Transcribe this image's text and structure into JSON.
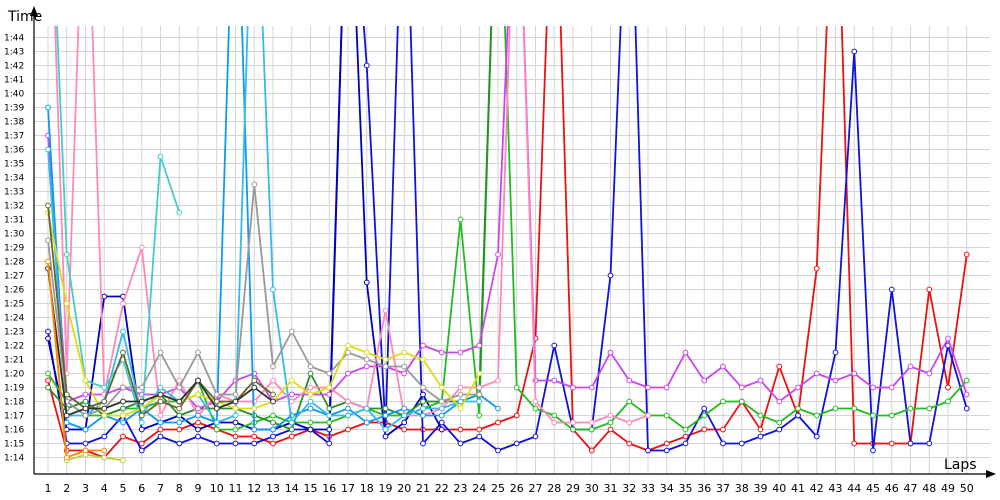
{
  "chart_data": {
    "type": "line",
    "title": "",
    "xlabel": "Laps",
    "ylabel": "Time",
    "x": [
      1,
      2,
      3,
      4,
      5,
      6,
      7,
      8,
      9,
      10,
      11,
      12,
      13,
      14,
      15,
      16,
      17,
      18,
      19,
      20,
      21,
      22,
      23,
      24,
      25,
      26,
      27,
      28,
      29,
      30,
      31,
      32,
      33,
      34,
      35,
      36,
      37,
      38,
      39,
      40,
      41,
      42,
      43,
      44,
      45,
      46,
      47,
      48,
      49,
      50
    ],
    "xlim": [
      1,
      50
    ],
    "ylim": [
      13.2,
      45.5
    ],
    "ytick_labels": [
      "1:14",
      "1:15",
      "1:16",
      "1:17",
      "1:18",
      "1:19",
      "1:20",
      "1:21",
      "1:22",
      "1:23",
      "1:24",
      "1:25",
      "1:26",
      "1:27",
      "1:28",
      "1:29",
      "1:30",
      "1:31",
      "1:32",
      "1:33",
      "1:34",
      "1:35",
      "1:36",
      "1:37",
      "1:38",
      "1:39",
      "1:40",
      "1:41",
      "1:42",
      "1:43",
      "1:44"
    ],
    "grid": true,
    "legend": "none",
    "series": [
      {
        "color": "#ee1111",
        "values": [
          19.5,
          14.5,
          14.5,
          14.0,
          15.5,
          15.0,
          16.0,
          16.0,
          16.5,
          16.0,
          15.5,
          15.5,
          15.0,
          15.5,
          16.0,
          15.5,
          16.0,
          16.5,
          16.5,
          16.0,
          16.0,
          16.0,
          16.0,
          16.0,
          16.5,
          17.0,
          22.5,
          60.0,
          16.0,
          14.5,
          16.0,
          15.0,
          14.5,
          15.0,
          15.5,
          16.0,
          16.0,
          18.0,
          16.0,
          20.5,
          17.0,
          27.5,
          60.0,
          15.0,
          15.0,
          15.0,
          15.0,
          26.0,
          19.0,
          28.5
        ]
      },
      {
        "color": "#1111dd",
        "values": [
          23.0,
          15.0,
          15.0,
          15.5,
          17.0,
          14.5,
          15.5,
          15.0,
          15.5,
          15.0,
          15.0,
          15.0,
          15.5,
          16.0,
          16.0,
          15.0,
          60.0,
          42.0,
          16.0,
          60.0,
          15.0,
          16.5,
          15.0,
          15.5,
          14.5,
          15.0,
          15.5,
          22.0,
          16.0,
          16.0,
          27.0,
          60.0,
          14.5,
          14.5,
          15.0,
          17.5,
          15.0,
          15.0,
          15.5,
          16.0,
          17.0,
          15.5,
          21.5,
          43.0,
          14.5,
          26.0,
          15.0,
          15.0,
          22.0,
          17.5
        ]
      },
      {
        "color": "#0000bb",
        "values": [
          22.5,
          16.0,
          16.0,
          25.5,
          25.5,
          16.0,
          16.5,
          17.0,
          16.0,
          16.5,
          16.5,
          16.0,
          16.0,
          16.5,
          16.0,
          16.0,
          60.0,
          26.5,
          15.5,
          16.5,
          18.5,
          16.0,
          null,
          null,
          null,
          null,
          null,
          null,
          null,
          null,
          null,
          null,
          null,
          null,
          null,
          null,
          null,
          null,
          null,
          null,
          null,
          null,
          null,
          null,
          null,
          null,
          null,
          null,
          null,
          null
        ]
      },
      {
        "color": "#22bb22",
        "values": [
          20.0,
          18.0,
          17.0,
          17.0,
          17.5,
          17.5,
          18.0,
          18.0,
          19.5,
          16.0,
          16.0,
          16.5,
          17.0,
          16.5,
          16.5,
          16.5,
          17.0,
          17.5,
          17.0,
          17.0,
          17.5,
          18.0,
          31.0,
          17.0,
          60.0,
          19.0,
          17.5,
          17.0,
          16.0,
          16.0,
          16.5,
          18.0,
          17.0,
          17.0,
          16.0,
          17.0,
          18.0,
          18.0,
          17.0,
          16.5,
          17.5,
          17.0,
          17.5,
          17.5,
          17.0,
          17.0,
          17.5,
          17.5,
          18.0,
          19.5
        ]
      },
      {
        "color": "#2a8f2a",
        "values": [
          19.0,
          17.5,
          18.0,
          17.0,
          17.5,
          18.0,
          18.5,
          17.0,
          17.5,
          17.5,
          17.5,
          17.0,
          16.5,
          16.0,
          20.0,
          17.5,
          18.0,
          17.5,
          17.5,
          17.0,
          18.0,
          18.0,
          18.0,
          18.5,
          60.0,
          null,
          null,
          null,
          null,
          null,
          null,
          null,
          null,
          null,
          null,
          null,
          null,
          null,
          null,
          null,
          null,
          null,
          null,
          null,
          null,
          null,
          null,
          null,
          null,
          null
        ]
      },
      {
        "color": "#cc44ee",
        "values": [
          37.0,
          18.0,
          18.5,
          18.5,
          19.0,
          18.5,
          18.5,
          19.0,
          17.5,
          18.0,
          19.5,
          20.0,
          18.0,
          18.5,
          18.5,
          18.5,
          20.0,
          20.5,
          20.5,
          20.0,
          22.0,
          21.5,
          21.5,
          22.0,
          28.5,
          60.0,
          19.5,
          19.5,
          19.0,
          19.0,
          21.5,
          19.5,
          19.0,
          19.0,
          21.5,
          19.5,
          20.5,
          19.0,
          19.5,
          18.0,
          19.0,
          20.0,
          19.5,
          20.0,
          19.0,
          19.0,
          20.5,
          20.0,
          22.5,
          18.5
        ]
      },
      {
        "color": "#ff88bb",
        "values": [
          60.0,
          20.0,
          60.0,
          18.5,
          25.0,
          29.0,
          17.0,
          19.5,
          17.0,
          18.5,
          18.0,
          18.0,
          19.5,
          18.0,
          19.0,
          19.0,
          18.0,
          17.5,
          24.5,
          17.0,
          17.0,
          17.5,
          19.0,
          19.0,
          19.5,
          60.0,
          18.0,
          16.5,
          16.5,
          16.5,
          17.0,
          16.5,
          17.0,
          null,
          null,
          null,
          null,
          null,
          null,
          null,
          null,
          null,
          null,
          null,
          null,
          null,
          null,
          null,
          null,
          null
        ]
      },
      {
        "color": "#1199ee",
        "values": [
          39.0,
          16.5,
          16.0,
          17.0,
          16.5,
          17.5,
          16.5,
          16.5,
          17.0,
          16.5,
          60.0,
          16.0,
          16.0,
          17.0,
          17.5,
          17.0,
          17.5,
          16.5,
          17.0,
          17.5,
          17.0,
          17.0,
          18.0,
          18.5,
          17.5,
          null,
          null,
          null,
          null,
          null,
          null,
          null,
          null,
          null,
          null,
          null,
          null,
          null,
          null,
          null,
          null,
          null,
          null,
          null,
          null,
          null,
          null,
          null,
          null,
          null
        ]
      },
      {
        "color": "#33bbee",
        "values": [
          36.0,
          17.0,
          17.0,
          18.0,
          23.0,
          17.0,
          19.0,
          18.0,
          18.5,
          16.5,
          17.0,
          60.0,
          26.0,
          16.5,
          18.0,
          17.0,
          17.0,
          17.5,
          16.0,
          17.0,
          17.5,
          17.5,
          18.0,
          18.0,
          null,
          null,
          null,
          null,
          null,
          null,
          null,
          null,
          null,
          null,
          null,
          null,
          null,
          null,
          null,
          null,
          null,
          null,
          null,
          null,
          null,
          null,
          null,
          null,
          null,
          null
        ]
      },
      {
        "color": "#44cccc",
        "values": [
          60.0,
          28.5,
          19.5,
          19.0,
          21.0,
          16.5,
          35.5,
          31.5,
          null,
          null,
          null,
          null,
          null,
          null,
          null,
          null,
          null,
          null,
          null,
          null,
          null,
          null,
          null,
          null,
          null,
          null,
          null,
          null,
          null,
          null,
          null,
          null,
          null,
          null,
          null,
          null,
          null,
          null,
          null,
          null,
          null,
          null,
          null,
          null,
          null,
          null,
          null,
          null,
          null,
          null
        ]
      },
      {
        "color": "#999999",
        "values": [
          29.5,
          18.0,
          17.0,
          17.5,
          19.0,
          19.0,
          21.5,
          19.0,
          21.5,
          18.5,
          18.5,
          33.5,
          20.5,
          23.0,
          20.5,
          20.0,
          21.5,
          21.0,
          20.5,
          20.5,
          19.0,
          18.0,
          18.5,
          18.5,
          null,
          null,
          null,
          null,
          null,
          null,
          null,
          null,
          null,
          null,
          null,
          null,
          null,
          null,
          null,
          null,
          null,
          null,
          null,
          null,
          null,
          null,
          null,
          null,
          null,
          null
        ]
      },
      {
        "color": "#dddd11",
        "values": [
          31.5,
          25.0,
          19.5,
          17.0,
          17.0,
          17.5,
          18.5,
          18.0,
          18.5,
          18.0,
          17.5,
          17.5,
          18.0,
          19.5,
          18.5,
          19.0,
          22.0,
          21.5,
          21.0,
          21.5,
          21.0,
          19.0,
          17.5,
          20.0,
          null,
          null,
          null,
          null,
          null,
          null,
          null,
          null,
          null,
          null,
          null,
          null,
          null,
          null,
          null,
          null,
          null,
          null,
          null,
          null,
          null,
          null,
          null,
          null,
          null,
          null
        ]
      },
      {
        "color": "#bbcc33",
        "values": [
          28.0,
          13.8,
          14.2,
          14.0,
          13.8,
          null,
          null,
          null,
          null,
          null,
          null,
          null,
          null,
          null,
          null,
          null,
          null,
          null,
          null,
          null,
          null,
          null,
          null,
          null,
          null,
          null,
          null,
          null,
          null,
          null,
          null,
          null,
          null,
          null,
          null,
          null,
          null,
          null,
          null,
          null,
          null,
          null,
          null,
          null,
          null,
          null,
          null,
          null,
          null,
          null
        ]
      },
      {
        "color": "#666633",
        "values": [
          32.0,
          18.5,
          17.5,
          18.0,
          21.5,
          17.0,
          18.0,
          17.5,
          19.5,
          18.0,
          18.0,
          19.5,
          18.5,
          null,
          null,
          null,
          null,
          null,
          null,
          null,
          null,
          null,
          null,
          null,
          null,
          null,
          null,
          null,
          null,
          null,
          null,
          null,
          null,
          null,
          null,
          null,
          null,
          null,
          null,
          null,
          null,
          null,
          null,
          null,
          null,
          null,
          null,
          null,
          null,
          null
        ]
      },
      {
        "color": "#333333",
        "values": [
          27.5,
          17.0,
          17.5,
          17.5,
          18.0,
          18.0,
          18.5,
          18.0,
          19.5,
          17.5,
          18.0,
          19.0,
          18.0,
          null,
          null,
          null,
          null,
          null,
          null,
          null,
          null,
          null,
          null,
          null,
          null,
          null,
          null,
          null,
          null,
          null,
          null,
          null,
          null,
          null,
          null,
          null,
          null,
          null,
          null,
          null,
          null,
          null,
          null,
          null,
          null,
          null,
          null,
          null,
          null,
          null
        ]
      },
      {
        "color": "#ff8800",
        "values": [
          28.0,
          14.0,
          14.5,
          14.5,
          null,
          null,
          null,
          null,
          null,
          null,
          null,
          null,
          null,
          null,
          null,
          null,
          null,
          null,
          null,
          null,
          null,
          null,
          null,
          null,
          null,
          null,
          null,
          null,
          null,
          null,
          null,
          null,
          null,
          null,
          null,
          null,
          null,
          null,
          null,
          null,
          null,
          null,
          null,
          null,
          null,
          null,
          null,
          null,
          null,
          null
        ]
      }
    ]
  }
}
